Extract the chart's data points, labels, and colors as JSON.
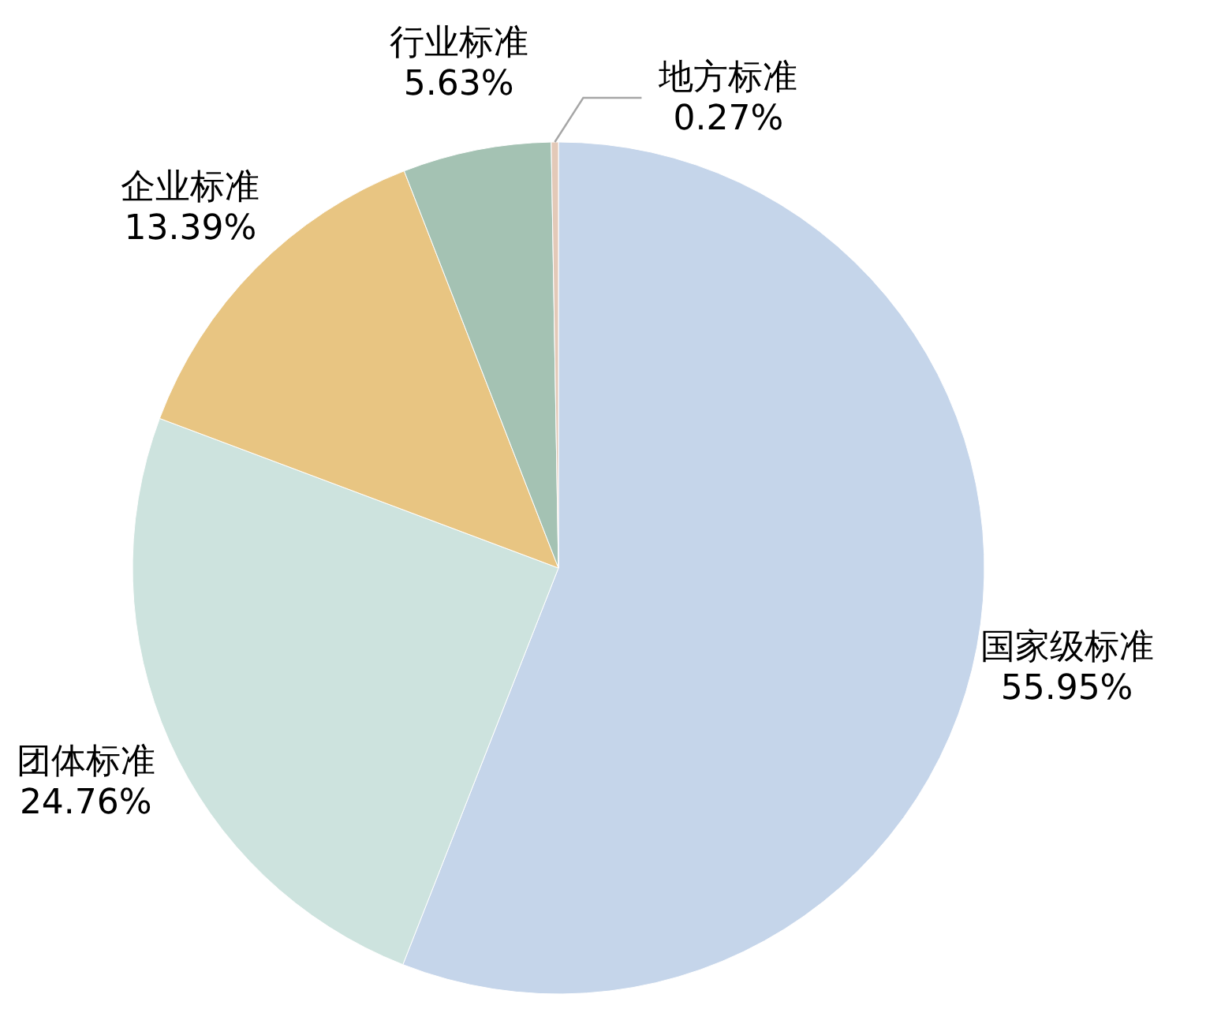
{
  "chart_data": {
    "type": "pie",
    "categories": [
      "国家级标准",
      "团体标准",
      "企业标准",
      "行业标准",
      "地方标准"
    ],
    "values": [
      55.95,
      24.76,
      13.39,
      5.63,
      0.27
    ],
    "colors": [
      "#c5d5ea",
      "#cde3de",
      "#e8c582",
      "#a4c2b3",
      "#e3c9b8"
    ],
    "value_labels": [
      "55.95%",
      "24.76%",
      "13.39%",
      "5.63%",
      "0.27%"
    ]
  }
}
